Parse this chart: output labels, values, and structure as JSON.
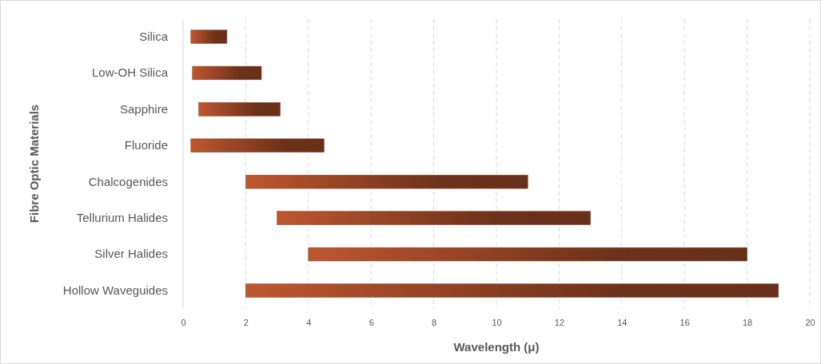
{
  "chart_data": {
    "type": "bar",
    "orientation": "horizontal",
    "xlabel": "Wavelength (μ)",
    "ylabel": "Fibre Optic Materials",
    "categories": [
      "Silica",
      "Low-OH Silica",
      "Sapphire",
      "Fluoride",
      "Chalcogenides",
      "Tellurium Halides",
      "Silver Halides",
      "Hollow Waveguides"
    ],
    "base": [
      0.25,
      0.3,
      0.5,
      0.25,
      2,
      3,
      4,
      2
    ],
    "values": [
      1.15,
      2.2,
      2.6,
      4.25,
      9,
      10,
      14,
      17
    ],
    "color": "#8a3f22",
    "xlim": [
      0,
      20
    ],
    "xticks": [
      0,
      2,
      4,
      6,
      8,
      10,
      12,
      14,
      16,
      18,
      20
    ],
    "grid": "x"
  }
}
